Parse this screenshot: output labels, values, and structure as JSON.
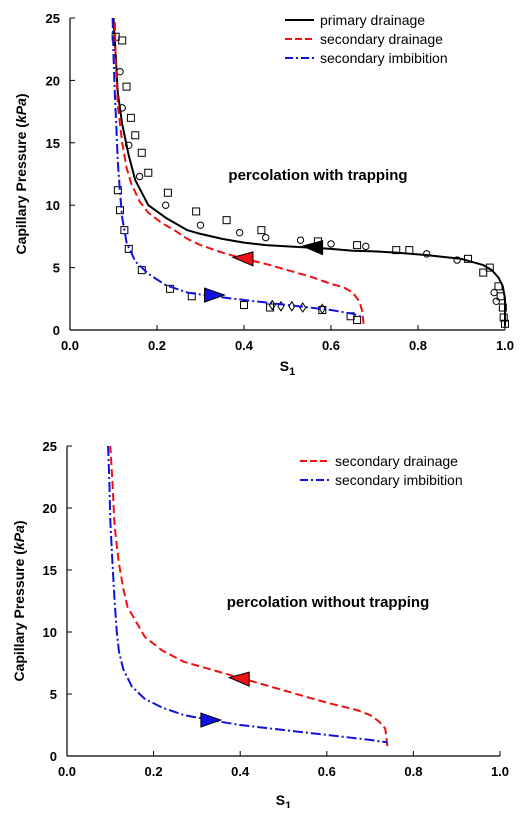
{
  "chart_data": [
    {
      "type": "line",
      "annotation": "percolation with trapping",
      "xlabel": "S",
      "xlabel_sub": "1",
      "ylabel": "Capillary Pressure",
      "ylabel_unit": "kPa",
      "xlim": [
        0,
        1
      ],
      "ylim": [
        0,
        25
      ],
      "x_ticks": [
        "0.0",
        "0.2",
        "0.4",
        "0.6",
        "0.8",
        "1.0"
      ],
      "y_ticks": [
        "0",
        "5",
        "10",
        "15",
        "20",
        "25"
      ],
      "grid": false,
      "legend_position": "top-right",
      "series": [
        {
          "name": "primary drainage",
          "color": "#000000",
          "style": "solid",
          "arrow": {
            "x": 0.56,
            "y": 6.6,
            "direction": "left"
          },
          "x": [
            1.0,
            1.0,
            0.995,
            0.985,
            0.97,
            0.95,
            0.9,
            0.82,
            0.75,
            0.7,
            0.65,
            0.6,
            0.55,
            0.5,
            0.45,
            0.4,
            0.35,
            0.3,
            0.27,
            0.22,
            0.18,
            0.15,
            0.135,
            0.12,
            0.11,
            0.105,
            0.1
          ],
          "y": [
            0.3,
            2.5,
            3.5,
            4.2,
            4.8,
            5.2,
            5.7,
            6.0,
            6.2,
            6.3,
            6.35,
            6.5,
            6.6,
            6.7,
            6.8,
            7.0,
            7.3,
            7.7,
            8.0,
            9.0,
            10.0,
            12.0,
            14.0,
            16.5,
            19.0,
            22.0,
            25.0
          ]
        },
        {
          "name": "secondary drainage",
          "color": "#ee1111",
          "style": "dashed",
          "arrow": {
            "x": 0.4,
            "y": 5.7,
            "direction": "left"
          },
          "x": [
            0.675,
            0.672,
            0.665,
            0.65,
            0.63,
            0.6,
            0.55,
            0.5,
            0.45,
            0.4,
            0.35,
            0.3,
            0.27,
            0.24,
            0.21,
            0.18,
            0.16,
            0.14,
            0.13,
            0.12,
            0.11,
            0.105,
            0.103
          ],
          "y": [
            0.5,
            1.5,
            2.3,
            3.0,
            3.4,
            3.7,
            4.3,
            4.8,
            5.3,
            5.7,
            6.2,
            6.8,
            7.3,
            8.0,
            8.6,
            9.4,
            10.3,
            11.8,
            13.0,
            15.0,
            18.0,
            21.5,
            25.0
          ]
        },
        {
          "name": "secondary imbibition",
          "color": "#1111dd",
          "style": "dashdot",
          "arrow": {
            "x": 0.33,
            "y": 2.8,
            "direction": "right"
          },
          "x": [
            0.098,
            0.1,
            0.103,
            0.107,
            0.11,
            0.115,
            0.12,
            0.13,
            0.15,
            0.18,
            0.22,
            0.27,
            0.33,
            0.4,
            0.5,
            0.6,
            0.65,
            0.675
          ],
          "y": [
            25.0,
            22.0,
            19.0,
            16.0,
            13.5,
            11.0,
            9.0,
            7.0,
            5.5,
            4.5,
            3.6,
            3.0,
            2.7,
            2.4,
            2.0,
            1.6,
            1.3,
            1.0
          ]
        }
      ],
      "markers": {
        "squares": [
          [
            0.105,
            23.5
          ],
          [
            0.12,
            23.2
          ],
          [
            0.13,
            19.5
          ],
          [
            0.14,
            17.0
          ],
          [
            0.15,
            15.6
          ],
          [
            0.165,
            14.2
          ],
          [
            0.18,
            12.6
          ],
          [
            0.225,
            11.0
          ],
          [
            0.29,
            9.5
          ],
          [
            0.36,
            8.8
          ],
          [
            0.44,
            8.0
          ],
          [
            0.57,
            7.1
          ],
          [
            0.66,
            6.8
          ],
          [
            0.75,
            6.4
          ],
          [
            0.78,
            6.4
          ],
          [
            0.915,
            5.7
          ],
          [
            0.965,
            5.0
          ],
          [
            0.95,
            4.6
          ],
          [
            0.985,
            3.5
          ],
          [
            0.99,
            2.7
          ],
          [
            0.995,
            1.8
          ],
          [
            0.997,
            1.0
          ],
          [
            1.0,
            0.5
          ],
          [
            0.11,
            11.2
          ],
          [
            0.115,
            9.6
          ],
          [
            0.125,
            8.0
          ],
          [
            0.135,
            6.5
          ],
          [
            0.165,
            4.8
          ],
          [
            0.23,
            3.3
          ],
          [
            0.28,
            2.7
          ],
          [
            0.4,
            2.0
          ],
          [
            0.46,
            1.8
          ],
          [
            0.58,
            1.6
          ],
          [
            0.645,
            1.1
          ],
          [
            0.66,
            0.8
          ]
        ],
        "circles": [
          [
            0.115,
            20.7
          ],
          [
            0.12,
            17.8
          ],
          [
            0.135,
            14.8
          ],
          [
            0.16,
            12.3
          ],
          [
            0.22,
            10.0
          ],
          [
            0.3,
            8.4
          ],
          [
            0.39,
            7.8
          ],
          [
            0.45,
            7.4
          ],
          [
            0.53,
            7.2
          ],
          [
            0.6,
            6.9
          ],
          [
            0.68,
            6.7
          ],
          [
            0.82,
            6.1
          ],
          [
            0.89,
            5.6
          ],
          [
            0.975,
            3.0
          ],
          [
            0.98,
            2.3
          ]
        ],
        "diamonds": [
          [
            0.465,
            2.0
          ],
          [
            0.485,
            1.9
          ],
          [
            0.51,
            1.9
          ],
          [
            0.535,
            1.8
          ],
          [
            0.58,
            1.7
          ]
        ]
      }
    },
    {
      "type": "line",
      "annotation": "percolation without trapping",
      "xlabel": "S",
      "xlabel_sub": "1",
      "ylabel": "Capillary Pressure",
      "ylabel_unit": "kPa",
      "xlim": [
        0,
        1
      ],
      "ylim": [
        0,
        25
      ],
      "x_ticks": [
        "0.0",
        "0.2",
        "0.4",
        "0.6",
        "0.8",
        "1.0"
      ],
      "y_ticks": [
        "0",
        "5",
        "10",
        "15",
        "20",
        "25"
      ],
      "grid": false,
      "legend_position": "top-right",
      "series": [
        {
          "name": "secondary drainage",
          "color": "#ee1111",
          "style": "dashed",
          "arrow": {
            "x": 0.4,
            "y": 6.2,
            "direction": "left"
          },
          "x": [
            0.74,
            0.735,
            0.72,
            0.7,
            0.67,
            0.6,
            0.5,
            0.4,
            0.33,
            0.27,
            0.22,
            0.18,
            0.16,
            0.14,
            0.13,
            0.12,
            0.11,
            0.105,
            0.1
          ],
          "y": [
            0.8,
            2.2,
            2.8,
            3.3,
            3.7,
            4.3,
            5.3,
            6.3,
            7.0,
            7.6,
            8.5,
            9.6,
            10.8,
            12.0,
            13.5,
            15.5,
            18.5,
            22.0,
            25.0
          ]
        },
        {
          "name": "secondary imbibition",
          "color": "#1111dd",
          "style": "dashdot",
          "arrow": {
            "x": 0.33,
            "y": 2.9,
            "direction": "right"
          },
          "x": [
            0.095,
            0.098,
            0.1,
            0.105,
            0.11,
            0.115,
            0.12,
            0.13,
            0.15,
            0.18,
            0.22,
            0.27,
            0.33,
            0.4,
            0.5,
            0.6,
            0.7,
            0.74
          ],
          "y": [
            25.0,
            22.0,
            19.0,
            15.5,
            12.5,
            10.0,
            8.4,
            7.0,
            5.6,
            4.6,
            3.9,
            3.3,
            2.9,
            2.5,
            2.1,
            1.7,
            1.3,
            1.1
          ]
        }
      ],
      "markers": {
        "squares": [],
        "circles": [],
        "diamonds": []
      }
    }
  ]
}
